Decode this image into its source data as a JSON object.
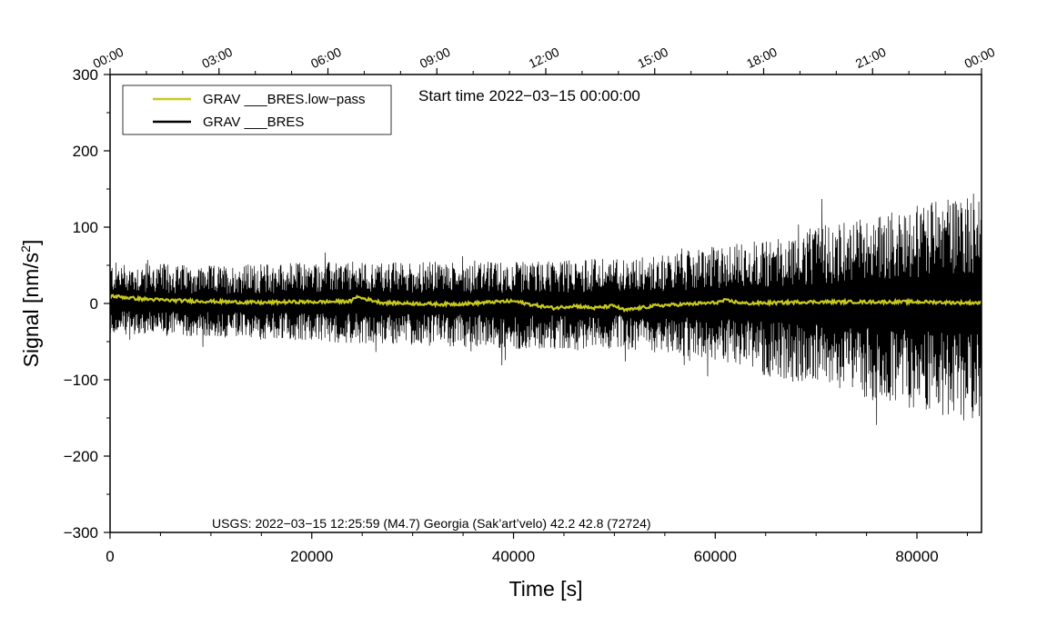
{
  "chart_data": {
    "type": "line",
    "xlabel": "Time [s]",
    "ylabel_main": "Signal [nm/s",
    "ylabel_sup": "2",
    "ylabel_tail": "]",
    "xlim": [
      0,
      86400
    ],
    "ylim": [
      -300,
      300
    ],
    "x_ticks": [
      {
        "value": 0,
        "label": "0"
      },
      {
        "value": 20000,
        "label": "20000"
      },
      {
        "value": 40000,
        "label": "40000"
      },
      {
        "value": 60000,
        "label": "60000"
      },
      {
        "value": 80000,
        "label": "80000"
      }
    ],
    "y_ticks": [
      {
        "value": 300,
        "label": "300"
      },
      {
        "value": 200,
        "label": "200"
      },
      {
        "value": 100,
        "label": "100"
      },
      {
        "value": 0,
        "label": "0"
      },
      {
        "value": -100,
        "label": "−100"
      },
      {
        "value": -200,
        "label": "−200"
      },
      {
        "value": -300,
        "label": "−300"
      }
    ],
    "top_axis_ticks": [
      {
        "value": 0,
        "label": "00:00"
      },
      {
        "value": 10800,
        "label": "03:00"
      },
      {
        "value": 21600,
        "label": "06:00"
      },
      {
        "value": 32400,
        "label": "09:00"
      },
      {
        "value": 43200,
        "label": "12:00"
      },
      {
        "value": 54000,
        "label": "15:00"
      },
      {
        "value": 64800,
        "label": "18:00"
      },
      {
        "value": 75600,
        "label": "21:00"
      },
      {
        "value": 86400,
        "label": "00:00"
      }
    ],
    "start_time_text": "Start time 2022−03−15 00:00:00",
    "annotation": "USGS: 2022−03−15 12:25:59 (M4.7) Georgia (Sak’art’velo) 42.2 42.8 (72724)",
    "legend_position": "top-left",
    "grid": false,
    "series": [
      {
        "name": "GRAV ___BRES.low−pass",
        "color": "#c8c81e",
        "style": "line",
        "x": [
          0,
          3000,
          6000,
          9000,
          12000,
          15000,
          18000,
          21000,
          24000,
          24300,
          27000,
          30000,
          33000,
          36000,
          38000,
          40000,
          42000,
          44000,
          46000,
          48000,
          50000,
          51000,
          54000,
          57000,
          60000,
          61000,
          63000,
          66000,
          69000,
          72000,
          75000,
          78000,
          81000,
          84000,
          86400
        ],
        "y": [
          10,
          6,
          4,
          3,
          2,
          1,
          2,
          2,
          3,
          9,
          1,
          0,
          -1,
          0,
          2,
          3,
          -2,
          -6,
          -3,
          -6,
          -3,
          -9,
          -3,
          -1,
          1,
          4,
          0,
          1,
          2,
          2,
          2,
          2,
          2,
          1,
          1
        ]
      },
      {
        "name": "GRAV ___BRES",
        "color": "#000000",
        "style": "line",
        "x": [
          0,
          10000,
          20000,
          30000,
          40000,
          50000,
          55000,
          60000,
          65000,
          70000,
          75000,
          80000,
          86400
        ],
        "envelope_upper": [
          55,
          50,
          55,
          55,
          55,
          60,
          65,
          75,
          85,
          100,
          115,
          130,
          155
        ],
        "envelope_lower": [
          -40,
          -45,
          -50,
          -55,
          -60,
          -60,
          -65,
          -75,
          -95,
          -110,
          -125,
          -140,
          -160
        ]
      }
    ]
  }
}
